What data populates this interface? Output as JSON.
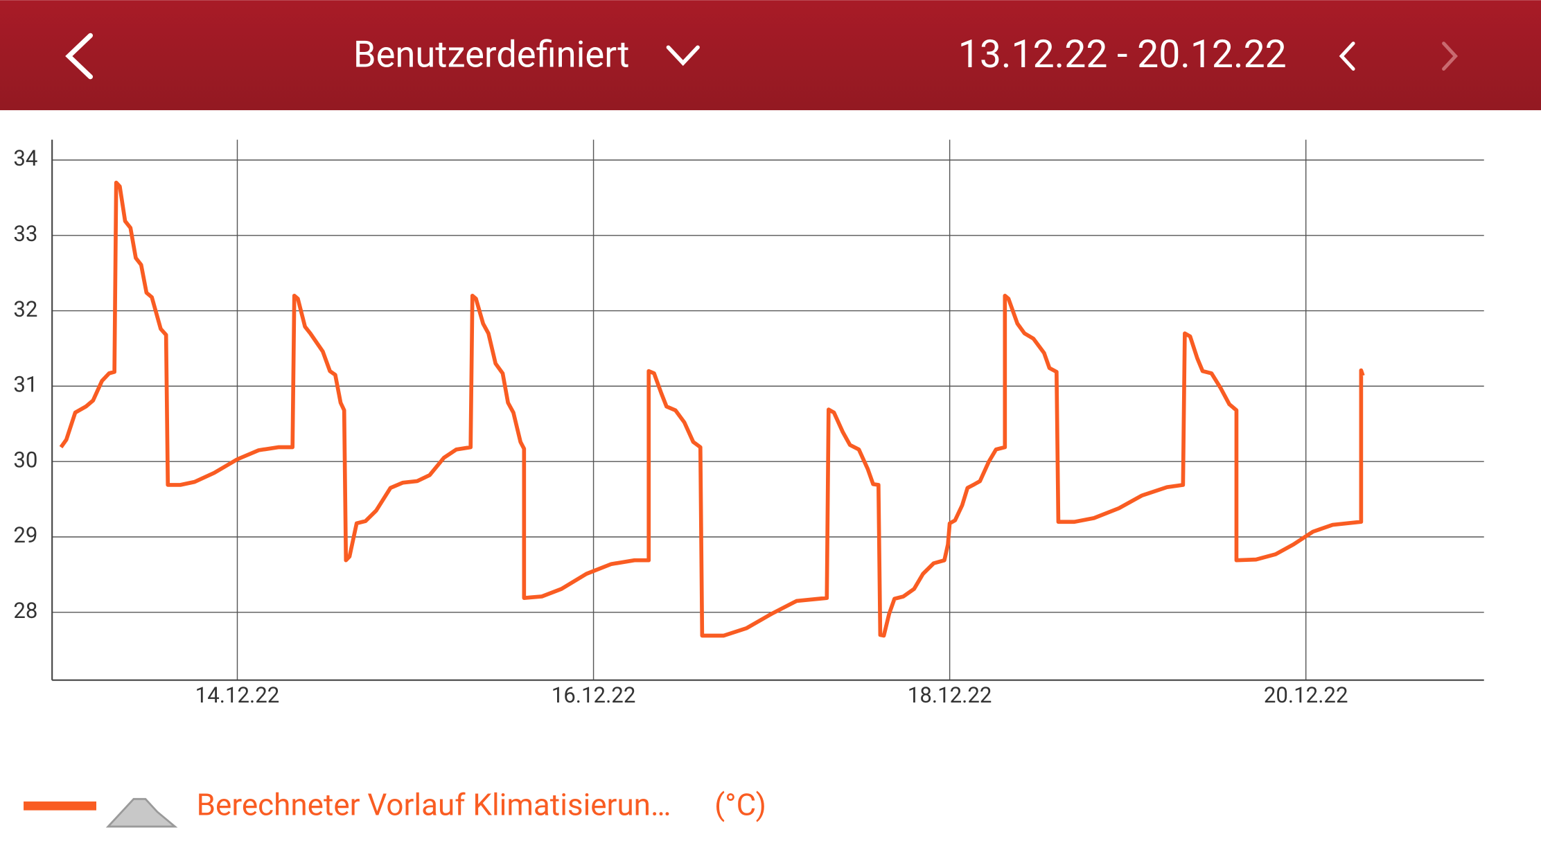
{
  "header": {
    "title": "Benutzerdefiniert",
    "date_range": "13.12.22 - 20.12.22"
  },
  "chart_data": {
    "type": "line",
    "x": [
      13.01,
      13.04,
      13.09,
      13.15,
      13.19,
      13.24,
      13.28,
      13.31,
      13.32,
      13.34,
      13.37,
      13.4,
      13.43,
      13.46,
      13.49,
      13.52,
      13.57,
      13.6,
      13.61,
      13.68,
      13.76,
      13.87,
      14.0,
      14.12,
      14.23,
      14.31,
      14.32,
      14.34,
      14.38,
      14.41,
      14.48,
      14.52,
      14.55,
      14.58,
      14.6,
      14.61,
      14.63,
      14.67,
      14.72,
      14.78,
      14.86,
      14.93,
      15.01,
      15.08,
      15.16,
      15.23,
      15.31,
      15.32,
      15.34,
      15.38,
      15.41,
      15.45,
      15.49,
      15.52,
      15.55,
      15.59,
      15.61,
      15.61,
      15.71,
      15.82,
      15.96,
      16.1,
      16.23,
      16.31,
      16.31,
      16.34,
      16.38,
      16.41,
      16.46,
      16.51,
      16.56,
      16.6,
      16.61,
      16.73,
      16.86,
      17.0,
      17.14,
      17.31,
      17.32,
      17.35,
      17.4,
      17.44,
      17.49,
      17.54,
      17.57,
      17.6,
      17.61,
      17.63,
      17.66,
      17.69,
      17.74,
      17.8,
      17.85,
      17.91,
      17.97,
      17.99,
      18.0,
      18.03,
      18.07,
      18.1,
      18.14,
      18.17,
      18.22,
      18.26,
      18.31,
      18.31,
      18.33,
      18.38,
      18.42,
      18.47,
      18.53,
      18.56,
      18.6,
      18.61,
      18.7,
      18.81,
      18.95,
      19.08,
      19.22,
      19.31,
      19.32,
      19.35,
      19.39,
      19.42,
      19.47,
      19.52,
      19.57,
      19.61,
      19.61,
      19.72,
      19.83,
      19.93,
      20.04,
      20.15,
      20.31,
      20.31,
      20.32
    ],
    "series": [
      {
        "name": "Berechneter Vorlauf Klimatisierun…",
        "color": "#f95c22",
        "values": [
          30.19,
          30.29,
          30.65,
          30.73,
          30.81,
          31.07,
          31.17,
          31.19,
          33.7,
          33.65,
          33.19,
          33.1,
          32.7,
          32.61,
          32.24,
          32.18,
          31.76,
          31.68,
          29.69,
          29.69,
          29.73,
          29.85,
          30.03,
          30.15,
          30.19,
          30.19,
          32.2,
          32.16,
          31.79,
          31.7,
          31.46,
          31.2,
          31.15,
          30.78,
          30.68,
          28.69,
          28.74,
          29.18,
          29.21,
          29.35,
          29.65,
          29.72,
          29.74,
          29.82,
          30.05,
          30.16,
          30.19,
          32.2,
          32.16,
          31.83,
          31.7,
          31.3,
          31.17,
          30.78,
          30.65,
          30.26,
          30.17,
          28.19,
          28.21,
          28.31,
          28.51,
          28.64,
          28.69,
          28.69,
          31.2,
          31.17,
          30.91,
          30.73,
          30.68,
          30.52,
          30.26,
          30.19,
          27.69,
          27.69,
          27.79,
          27.98,
          28.15,
          28.19,
          30.69,
          30.65,
          30.39,
          30.22,
          30.16,
          29.9,
          29.7,
          29.69,
          27.7,
          27.69,
          27.98,
          28.18,
          28.21,
          28.31,
          28.51,
          28.65,
          28.69,
          28.9,
          29.18,
          29.22,
          29.42,
          29.65,
          29.7,
          29.74,
          30.0,
          30.16,
          30.19,
          32.2,
          32.16,
          31.83,
          31.7,
          31.63,
          31.44,
          31.24,
          31.19,
          29.2,
          29.2,
          29.25,
          29.38,
          29.55,
          29.66,
          29.69,
          31.7,
          31.66,
          31.37,
          31.2,
          31.17,
          30.98,
          30.76,
          30.68,
          28.69,
          28.7,
          28.77,
          28.9,
          29.07,
          29.16,
          29.2,
          31.21,
          31.14
        ]
      }
    ],
    "unit_label": "(°C)",
    "xlim": [
      12.96,
      21.0
    ],
    "xticks": [
      {
        "value": 14,
        "label": "14.12.22"
      },
      {
        "value": 16,
        "label": "16.12.22"
      },
      {
        "value": 18,
        "label": "18.12.22"
      },
      {
        "value": 20,
        "label": "20.12.22"
      }
    ],
    "ylim": [
      27.1,
      34.27
    ],
    "yticks": [
      28,
      29,
      30,
      31,
      32,
      33,
      34
    ],
    "grid": true
  }
}
